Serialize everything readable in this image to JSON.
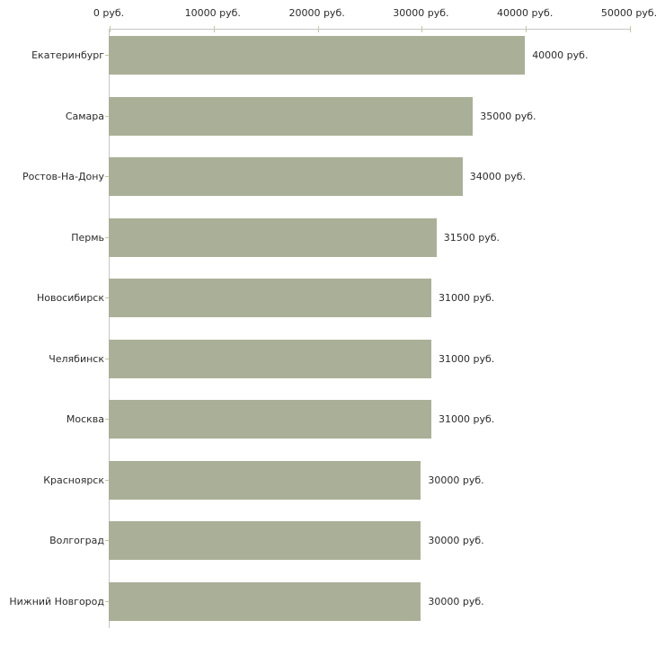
{
  "chart_data": {
    "type": "bar",
    "orientation": "horizontal",
    "title": "",
    "xlabel": "",
    "ylabel": "",
    "unit": "руб.",
    "grid": false,
    "legend": "none",
    "xlim": [
      0,
      50000
    ],
    "categories": [
      "Екатеринбург",
      "Самара",
      "Ростов-На-Дону",
      "Пермь",
      "Новосибирск",
      "Челябинск",
      "Москва",
      "Красноярск",
      "Волгоград",
      "Нижний Новгород"
    ],
    "values": [
      40000,
      35000,
      34000,
      31500,
      31000,
      31000,
      31000,
      30000,
      30000,
      30000
    ],
    "value_labels": [
      "40000 руб.",
      "35000 руб.",
      "34000 руб.",
      "31500 руб.",
      "31000 руб.",
      "31000 руб.",
      "31000 руб.",
      "30000 руб.",
      "30000 руб.",
      "30000 руб."
    ],
    "x_ticks": [
      {
        "value": 0,
        "label": "0 руб."
      },
      {
        "value": 10000,
        "label": "10000 руб."
      },
      {
        "value": 20000,
        "label": "20000 руб."
      },
      {
        "value": 30000,
        "label": "30000 руб."
      },
      {
        "value": 40000,
        "label": "40000 руб."
      },
      {
        "value": 50000,
        "label": "50000 руб."
      }
    ],
    "bar_color": "#aab097",
    "axis_line_color": "#c6c6c6",
    "tick_color": "#c6c79f",
    "text_color": "#2b2b2b"
  }
}
